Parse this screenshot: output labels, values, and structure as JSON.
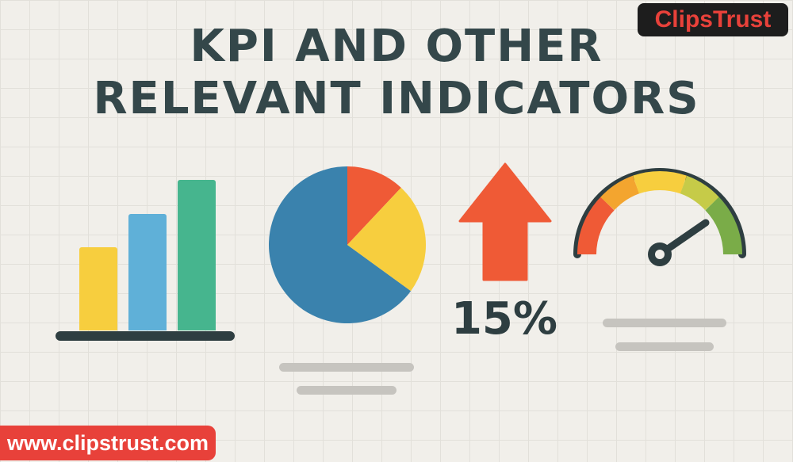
{
  "header": {
    "title_line1": "KPI AND OTHER",
    "title_line2": "RELEVANT INDICATORS"
  },
  "brand": {
    "logo_text": "ClipsTrust"
  },
  "footer": {
    "url": "www.clipstrust.com"
  },
  "indicators": {
    "percent_change": "15%",
    "arrow_direction": "up",
    "gauge_level": 0.85
  },
  "chart_data": [
    {
      "type": "bar",
      "categories": [
        "",
        "",
        ""
      ],
      "values": [
        105,
        147,
        190
      ],
      "colors": [
        "#f7ce3e",
        "#5fb0d8",
        "#46b58e"
      ]
    },
    {
      "type": "pie",
      "values": [
        65,
        12,
        23
      ],
      "colors": [
        "#3a82ad",
        "#ef5a36",
        "#f7ce3e"
      ]
    }
  ],
  "colors": {
    "background": "#f1efea",
    "title": "#34474a",
    "accent_red": "#e8413a",
    "arrow": "#ef5a36",
    "dark": "#2e3e41",
    "gauge_segments": [
      "#ef5a36",
      "#f3a52f",
      "#f7ce3e",
      "#c6cb48",
      "#7aac48"
    ]
  }
}
